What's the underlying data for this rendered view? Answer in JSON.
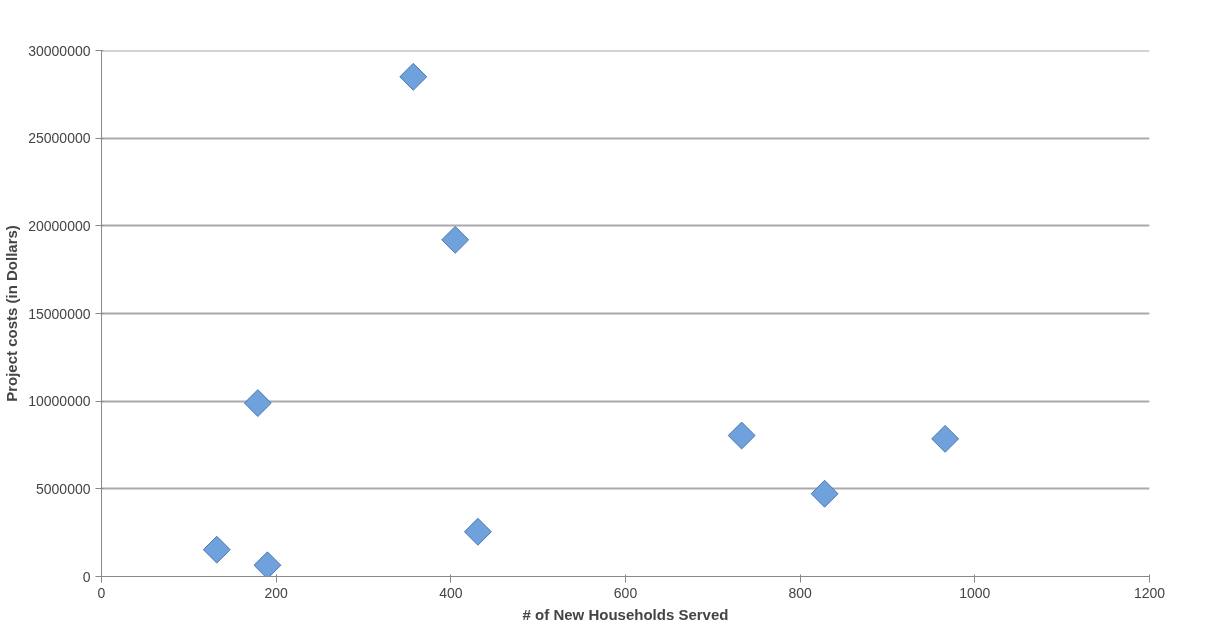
{
  "chart_data": {
    "type": "scatter",
    "xlabel": "# of New Households Served",
    "ylabel": "Project costs (in Dollars)",
    "x": [
      132,
      179,
      190,
      357,
      405,
      431,
      733,
      828,
      966
    ],
    "values": [
      1530000,
      9890000,
      640000,
      28500000,
      19200000,
      2550000,
      8040000,
      4720000,
      7850000
    ],
    "color": "#6fa1dc",
    "marker": "diamond",
    "xlim": [
      0,
      1200
    ],
    "xticks": [
      0,
      200,
      400,
      600,
      800,
      1000,
      1200
    ],
    "ylim": [
      0,
      30000000
    ],
    "yticks": [
      0,
      5000000,
      10000000,
      15000000,
      20000000,
      25000000,
      30000000
    ],
    "grid": "y"
  }
}
